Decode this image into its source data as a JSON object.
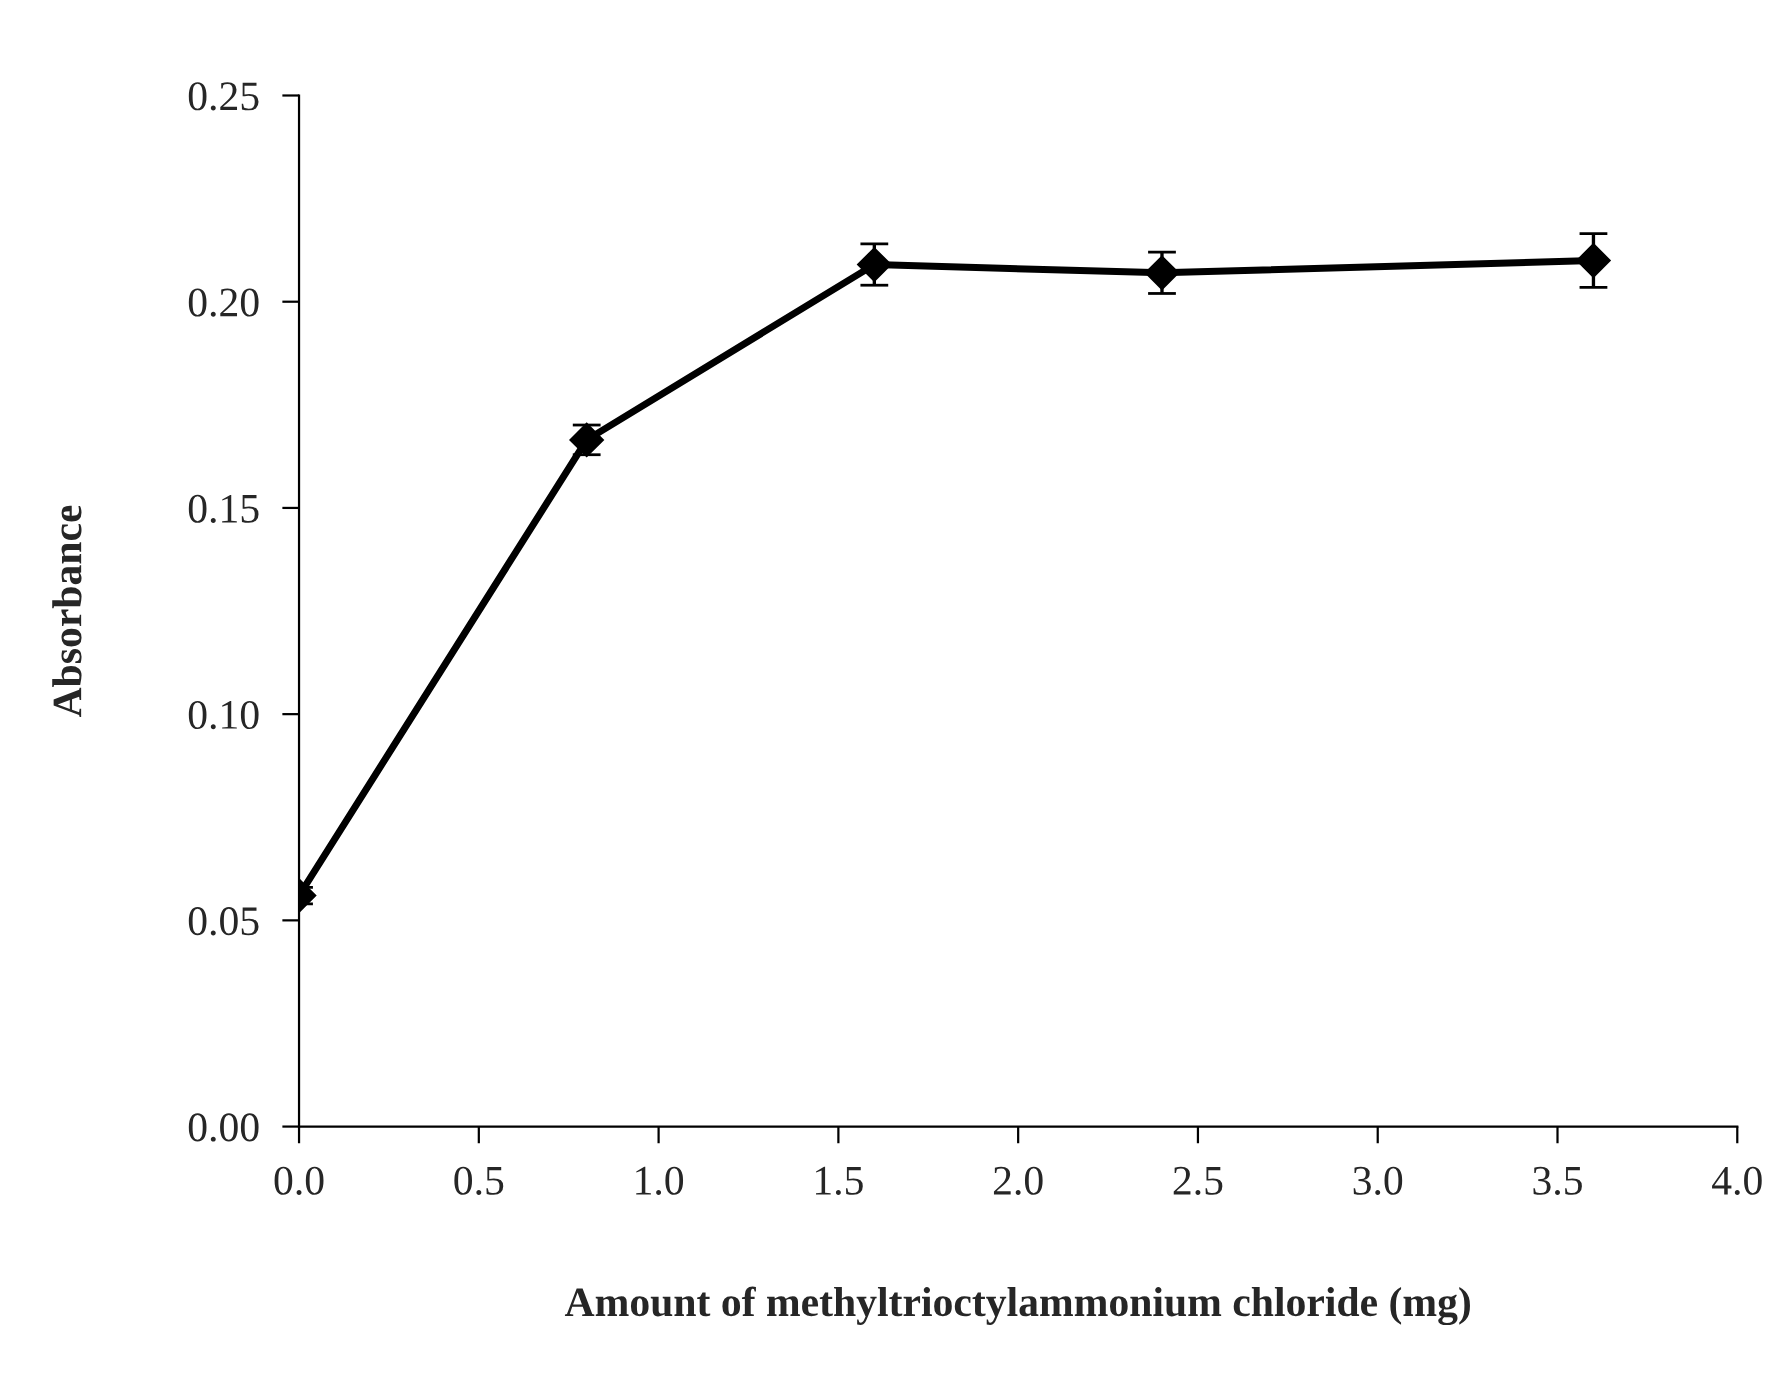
{
  "chart_data": {
    "type": "line",
    "xlabel": "Amount of methyltrioctylammonium chloride (mg)",
    "ylabel": "Absorbance",
    "x": [
      0,
      0.8,
      1.6,
      2.4,
      3.6
    ],
    "series": [
      {
        "color": "#000000",
        "values": [
          0.056,
          0.1665,
          0.209,
          0.207,
          0.21
        ],
        "errors": [
          0.002,
          0.0036,
          0.005,
          0.005,
          0.0065
        ]
      }
    ],
    "xlim": [
      0,
      4
    ],
    "xticks": [
      {
        "value": 0,
        "label": "0.0"
      },
      {
        "value": 0.5,
        "label": "0.5"
      },
      {
        "value": 1,
        "label": "1.0"
      },
      {
        "value": 1.5,
        "label": "1.5"
      },
      {
        "value": 2,
        "label": "2.0"
      },
      {
        "value": 2.5,
        "label": "2.5"
      },
      {
        "value": 3,
        "label": "3.0"
      },
      {
        "value": 3.5,
        "label": "3.5"
      },
      {
        "value": 4,
        "label": "4.0"
      }
    ],
    "ylim": [
      0,
      0.25
    ],
    "yticks": [
      {
        "value": 0,
        "label": "0.00"
      },
      {
        "value": 0.05,
        "label": "0.05"
      },
      {
        "value": 0.1,
        "label": "0.10"
      },
      {
        "value": 0.15,
        "label": "0.15"
      },
      {
        "value": 0.2,
        "label": "0.20"
      },
      {
        "value": 0.25,
        "label": "0.25"
      }
    ],
    "grid": false,
    "legend": false,
    "marker": "diamond",
    "line_style": "solid"
  }
}
